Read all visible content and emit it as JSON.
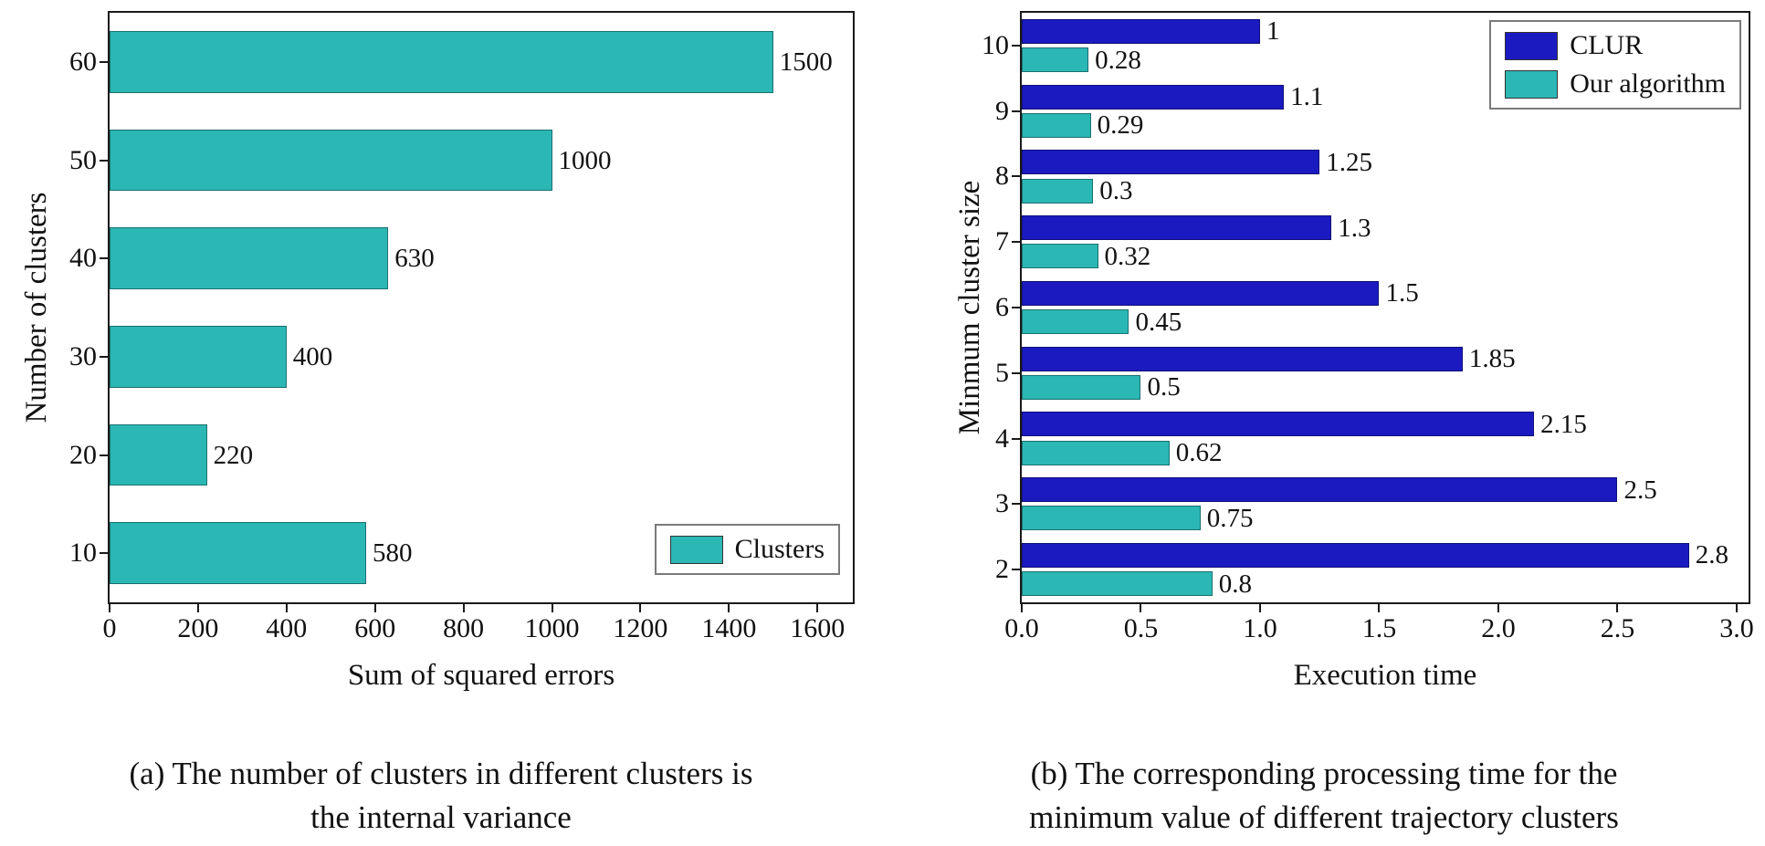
{
  "page": {
    "background": "#ffffff",
    "text_color": "#111111"
  },
  "chart_data": [
    {
      "type": "bar",
      "orientation": "horizontal",
      "panel": "a",
      "categories": [
        "60",
        "50",
        "40",
        "30",
        "20",
        "10"
      ],
      "values": [
        1500,
        1000,
        630,
        400,
        220,
        580
      ],
      "value_labels": [
        "1500",
        "1000",
        "630",
        "400",
        "220",
        "580"
      ],
      "bar_color": "#2bb7b4",
      "xlabel": "Sum of squared errors",
      "ylabel": "Number of clusters",
      "xlim": [
        0,
        1680
      ],
      "xticks": [
        "0",
        "200",
        "400",
        "600",
        "800",
        "1000",
        "1200",
        "1400",
        "1600"
      ],
      "grid": false,
      "legend": {
        "position": "bottom-right",
        "entries": [
          {
            "label": "Clusters",
            "color": "#2bb7b4"
          }
        ]
      },
      "caption": "(a) The number of clusters in different clusters is the internal variance",
      "caption_lines": [
        "(a) The number of clusters in different clusters is",
        "the internal variance"
      ]
    },
    {
      "type": "bar",
      "orientation": "horizontal",
      "panel": "b",
      "categories": [
        "10",
        "9",
        "8",
        "7",
        "6",
        "5",
        "4",
        "3",
        "2"
      ],
      "series": [
        {
          "name": "CLUR",
          "color": "#1b1ac1",
          "values": [
            1,
            1.1,
            1.25,
            1.3,
            1.5,
            1.85,
            2.15,
            2.5,
            2.8
          ],
          "labels": [
            "1",
            "1.1",
            "1.25",
            "1.3",
            "1.5",
            "1.85",
            "2.15",
            "2.5",
            "2.8"
          ]
        },
        {
          "name": "Our algorithm",
          "color": "#2bb7b4",
          "values": [
            0.28,
            0.29,
            0.3,
            0.32,
            0.45,
            0.5,
            0.62,
            0.75,
            0.8
          ],
          "labels": [
            "0.28",
            "0.29",
            "0.3",
            "0.32",
            "0.45",
            "0.5",
            "0.62",
            "0.75",
            "0.8"
          ]
        }
      ],
      "xlabel": "Execution time",
      "ylabel": "Minmum cluster size",
      "xlim": [
        0,
        3.05
      ],
      "xticks": [
        "0.0",
        "0.5",
        "1.0",
        "1.5",
        "2.0",
        "2.5",
        "3.0"
      ],
      "grid": false,
      "legend": {
        "position": "top-right"
      },
      "caption": "(b) The corresponding processing time for the minimum value of different trajectory clusters",
      "caption_lines": [
        "(b) The corresponding processing time for the",
        "minimum value of different trajectory clusters"
      ]
    }
  ]
}
